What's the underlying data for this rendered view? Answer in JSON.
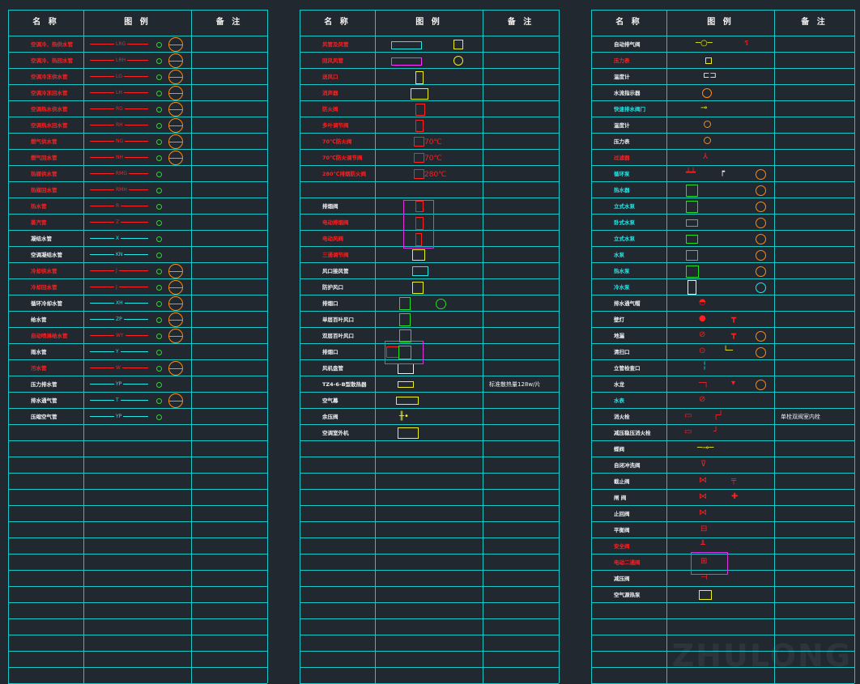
{
  "headers": {
    "name": "名 称",
    "legend": "图 例",
    "remark": "备 注"
  },
  "table1": [
    {
      "name": "空调冷、热供水管",
      "color": "rd",
      "code": "LRG",
      "circ": true
    },
    {
      "name": "空调冷、热回水管",
      "color": "rd",
      "code": "LRH",
      "circ": true
    },
    {
      "name": "空调冷冻供水管",
      "color": "rd",
      "code": "LG",
      "circ": true
    },
    {
      "name": "空调冷冻回水管",
      "color": "rd",
      "code": "LH",
      "circ": true
    },
    {
      "name": "空调热水供水管",
      "color": "rd",
      "code": "RG",
      "circ": true
    },
    {
      "name": "空调热水回水管",
      "color": "rd",
      "code": "RH",
      "circ": true
    },
    {
      "name": "燃气供水管",
      "color": "rd",
      "code": "NG",
      "circ": true
    },
    {
      "name": "燃气回水管",
      "color": "rd",
      "code": "NH",
      "circ": true
    },
    {
      "name": "热媒供水管",
      "color": "rd",
      "code": "RMG",
      "circ": false
    },
    {
      "name": "热媒回水管",
      "color": "rd",
      "code": "RMH",
      "circ": false
    },
    {
      "name": "热水管",
      "color": "rd",
      "code": "R",
      "circ": false
    },
    {
      "name": "蒸汽管",
      "color": "rd",
      "code": "Z",
      "circ": false
    },
    {
      "name": "凝结水管",
      "color": "wh",
      "code": "X",
      "circ": false
    },
    {
      "name": "空调凝结水管",
      "color": "wh",
      "code": "KN",
      "circ": false
    },
    {
      "name": "冷却供水管",
      "color": "rd",
      "code": "J",
      "circ": true
    },
    {
      "name": "冷却回水管",
      "color": "rd",
      "code": "J",
      "circ": true
    },
    {
      "name": "循环冷却水管",
      "color": "wh",
      "code": "XH",
      "circ": true
    },
    {
      "name": "给水管",
      "color": "wh",
      "code": "ZP",
      "circ": true
    },
    {
      "name": "自动喷淋给水管",
      "color": "rd",
      "code": "WY",
      "circ": true
    },
    {
      "name": "雨水管",
      "color": "wh",
      "code": "Y",
      "circ": false
    },
    {
      "name": "污水管",
      "color": "rd",
      "code": "W",
      "circ": true
    },
    {
      "name": "压力排水管",
      "color": "wh",
      "code": "YP",
      "circ": false
    },
    {
      "name": "排水通气管",
      "color": "wh",
      "code": "T",
      "circ": true
    },
    {
      "name": "压缩空气管",
      "color": "wh",
      "code": "YP",
      "circ": false
    }
  ],
  "table2": [
    {
      "name": "风管及风管",
      "color": "rd"
    },
    {
      "name": "回风风管",
      "color": "rd"
    },
    {
      "name": "送风口",
      "color": "rd"
    },
    {
      "name": "消声器",
      "color": "rd"
    },
    {
      "name": "防火阀",
      "color": "rd"
    },
    {
      "name": "多叶调节阀",
      "color": "rd"
    },
    {
      "name": "70℃防火阀",
      "color": "rd",
      "temp": "70℃"
    },
    {
      "name": "70℃防火调节阀",
      "color": "rd",
      "temp": "70℃"
    },
    {
      "name": "280℃排烟防火阀",
      "color": "rd",
      "temp": "280℃"
    },
    {
      "name": "",
      "color": "wh"
    },
    {
      "name": "排烟阀",
      "color": "wh"
    },
    {
      "name": "电动排烟阀",
      "color": "rd"
    },
    {
      "name": "电动风阀",
      "color": "rd"
    },
    {
      "name": "三通调节阀",
      "color": "rd"
    },
    {
      "name": "风口接风管",
      "color": "wh"
    },
    {
      "name": "防护风口",
      "color": "wh"
    },
    {
      "name": "排烟口",
      "color": "wh"
    },
    {
      "name": "单层百叶风口",
      "color": "wh"
    },
    {
      "name": "双层百叶风口",
      "color": "wh"
    },
    {
      "name": "排烟口",
      "color": "wh"
    },
    {
      "name": "风机盘管",
      "color": "wh"
    },
    {
      "name": "TZ4-6-B型散热器",
      "color": "wh",
      "remark": "标准散热量128w/片"
    },
    {
      "name": "空气幕",
      "color": "wh"
    },
    {
      "name": "余压阀",
      "color": "wh"
    },
    {
      "name": "空调室外机",
      "color": "wh"
    }
  ],
  "table3": [
    {
      "name": "自动排气阀",
      "color": "wh"
    },
    {
      "name": "压力表",
      "color": "rd"
    },
    {
      "name": "温度计",
      "color": "wh"
    },
    {
      "name": "水流指示器",
      "color": "wh"
    },
    {
      "name": "快速排水阀门",
      "color": "cy"
    },
    {
      "name": "温度计",
      "color": "wh"
    },
    {
      "name": "压力表",
      "color": "wh"
    },
    {
      "name": "过滤器",
      "color": "rd"
    },
    {
      "name": "循环泵",
      "color": "cy"
    },
    {
      "name": "热水器",
      "color": "cy"
    },
    {
      "name": "立式水泵",
      "color": "cy"
    },
    {
      "name": "卧式水泵",
      "color": "cy"
    },
    {
      "name": "立式水泵",
      "color": "cy"
    },
    {
      "name": "水泵",
      "color": "cy"
    },
    {
      "name": "热水泵",
      "color": "cy"
    },
    {
      "name": "冷水泵",
      "color": "cy"
    },
    {
      "name": "排水通气帽",
      "color": "wh"
    },
    {
      "name": "壁灯",
      "color": "wh"
    },
    {
      "name": "地漏",
      "color": "wh"
    },
    {
      "name": "清扫口",
      "color": "wh"
    },
    {
      "name": "立管检查口",
      "color": "wh"
    },
    {
      "name": "水龙",
      "color": "wh"
    },
    {
      "name": "水表",
      "color": "cy"
    },
    {
      "name": "消火栓",
      "color": "wh",
      "remark": "单栓双阀室内栓"
    },
    {
      "name": "减压稳压消火栓",
      "color": "wh"
    },
    {
      "name": "蝶阀",
      "color": "wh"
    },
    {
      "name": "自闭冲洗阀",
      "color": "wh"
    },
    {
      "name": "截止阀",
      "color": "wh"
    },
    {
      "name": "闸 阀",
      "color": "wh"
    },
    {
      "name": "止回阀",
      "color": "wh"
    },
    {
      "name": "平衡阀",
      "color": "wh"
    },
    {
      "name": "安全阀",
      "color": "rd"
    },
    {
      "name": "电动二通阀",
      "color": "rd"
    },
    {
      "name": "减压阀",
      "color": "wh"
    },
    {
      "name": "空气源热泵",
      "color": "wh"
    }
  ],
  "watermark": "ZHULONG"
}
